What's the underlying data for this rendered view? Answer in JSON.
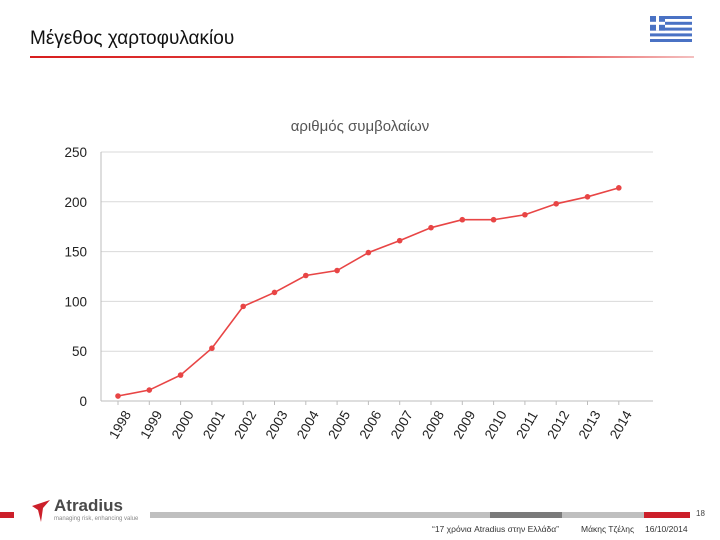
{
  "slide": {
    "title": "Μέγεθος χαρτοφυλακίου"
  },
  "chart_data": {
    "type": "line",
    "title": "αριθμός συμβολαίων",
    "xlabel": "",
    "ylabel": "",
    "categories": [
      "1998",
      "1999",
      "2000",
      "2001",
      "2002",
      "2003",
      "2004",
      "2005",
      "2006",
      "2007",
      "2008",
      "2009",
      "2010",
      "2011",
      "2012",
      "2013",
      "2014"
    ],
    "values": [
      5,
      11,
      26,
      53,
      95,
      109,
      126,
      131,
      149,
      161,
      174,
      182,
      182,
      187,
      198,
      205,
      214
    ],
    "ylim": [
      0,
      250
    ],
    "yticks": [
      "0",
      "50",
      "100",
      "150",
      "200",
      "250"
    ],
    "grid": true,
    "line_color": "#e84545"
  },
  "footer": {
    "logo_name": "Atradius",
    "logo_tagline": "managing risk, enhancing value",
    "page_number": "18",
    "event": "“17 χρόνια Atradius στην Ελλάδα”",
    "presenter": "Μάκης Τζέλης",
    "date": "16/10/2014"
  }
}
